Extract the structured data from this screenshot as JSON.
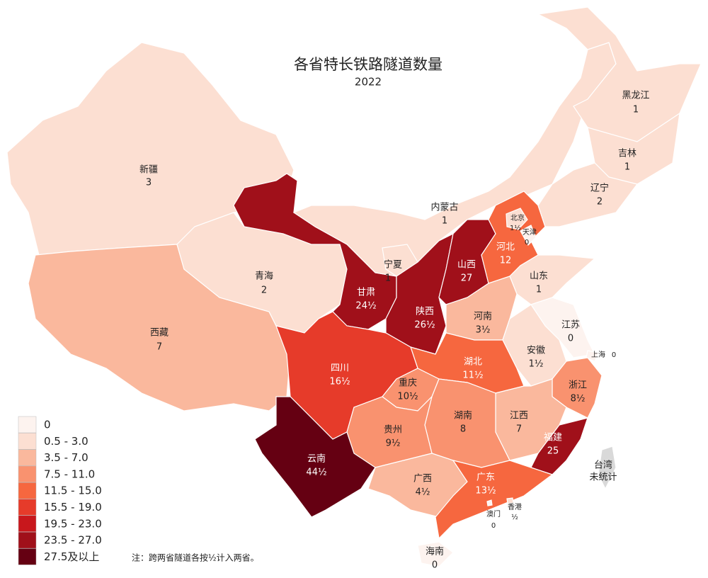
{
  "title": "各省特长铁路隧道数量",
  "subtitle": "2022",
  "note": "注：跨两省隧道各按½计入两省。",
  "legend": {
    "items": [
      {
        "label": "0",
        "min": 0,
        "max": 0,
        "color": "#fdf3ef"
      },
      {
        "label": "0.5 - 3.0",
        "min": 0.5,
        "max": 3.0,
        "color": "#fcdfd2"
      },
      {
        "label": "3.5 - 7.0",
        "min": 3.5,
        "max": 7.0,
        "color": "#fab89d"
      },
      {
        "label": "7.5 - 11.0",
        "min": 7.5,
        "max": 11.0,
        "color": "#f9926f"
      },
      {
        "label": "11.5 - 15.0",
        "min": 11.5,
        "max": 15.0,
        "color": "#f6673f"
      },
      {
        "label": "15.5 - 19.0",
        "min": 15.5,
        "max": 19.0,
        "color": "#e63b2a"
      },
      {
        "label": "19.5 - 23.0",
        "min": 19.5,
        "max": 23.0,
        "color": "#c8171c"
      },
      {
        "label": "23.5 - 27.0",
        "min": 23.5,
        "max": 27.0,
        "color": "#a0101a"
      },
      {
        "label": "27.5及以上",
        "min": 27.5,
        "color": "#650012"
      }
    ]
  },
  "regions": [
    {
      "name": "新疆",
      "value": 3,
      "value_label": "3"
    },
    {
      "name": "西藏",
      "value": 7,
      "value_label": "7"
    },
    {
      "name": "青海",
      "value": 2,
      "value_label": "2"
    },
    {
      "name": "甘肃",
      "value": 24.5,
      "value_label": "24½"
    },
    {
      "name": "内蒙古",
      "value": 1,
      "value_label": "1"
    },
    {
      "name": "宁夏",
      "value": 1,
      "value_label": "1"
    },
    {
      "name": "陕西",
      "value": 26.5,
      "value_label": "26½"
    },
    {
      "name": "山西",
      "value": 27,
      "value_label": "27"
    },
    {
      "name": "河北",
      "value": 12,
      "value_label": "12"
    },
    {
      "name": "北京",
      "value": 1.5,
      "value_label": "1½"
    },
    {
      "name": "天津",
      "value": 0,
      "value_label": "0"
    },
    {
      "name": "黑龙江",
      "value": 1,
      "value_label": "1"
    },
    {
      "name": "吉林",
      "value": 1,
      "value_label": "1"
    },
    {
      "name": "辽宁",
      "value": 2,
      "value_label": "2"
    },
    {
      "name": "山东",
      "value": 1,
      "value_label": "1"
    },
    {
      "name": "河南",
      "value": 3.5,
      "value_label": "3½"
    },
    {
      "name": "江苏",
      "value": 0,
      "value_label": "0"
    },
    {
      "name": "安徽",
      "value": 1.5,
      "value_label": "1½"
    },
    {
      "name": "上海",
      "value": 0,
      "value_label": "0"
    },
    {
      "name": "湖北",
      "value": 11.5,
      "value_label": "11½"
    },
    {
      "name": "四川",
      "value": 16.5,
      "value_label": "16½"
    },
    {
      "name": "重庆",
      "value": 10.5,
      "value_label": "10½"
    },
    {
      "name": "浙江",
      "value": 8.5,
      "value_label": "8½"
    },
    {
      "name": "江西",
      "value": 7,
      "value_label": "7"
    },
    {
      "name": "湖南",
      "value": 8,
      "value_label": "8"
    },
    {
      "name": "贵州",
      "value": 9.5,
      "value_label": "9½"
    },
    {
      "name": "云南",
      "value": 44.5,
      "value_label": "44½"
    },
    {
      "name": "福建",
      "value": 25,
      "value_label": "25"
    },
    {
      "name": "广西",
      "value": 4.5,
      "value_label": "4½"
    },
    {
      "name": "广东",
      "value": 13.5,
      "value_label": "13½"
    },
    {
      "name": "澳门",
      "value": 0,
      "value_label": "0"
    },
    {
      "name": "香港",
      "value": 0.5,
      "value_label": "½"
    },
    {
      "name": "海南",
      "value": 0,
      "value_label": "0"
    },
    {
      "name": "台湾",
      "value": null,
      "value_label": "未统计"
    }
  ]
}
